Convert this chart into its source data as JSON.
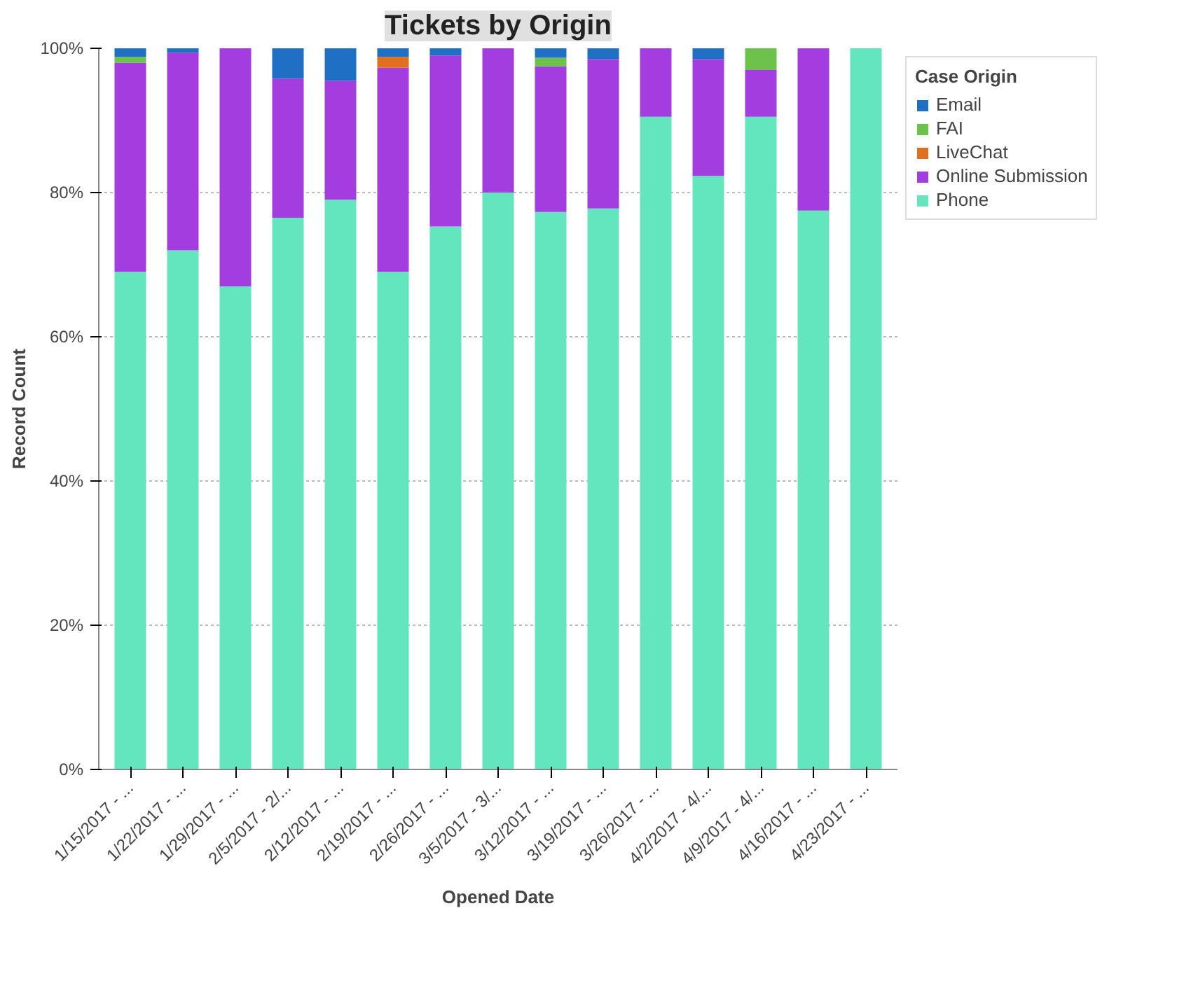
{
  "chart_data": {
    "type": "bar",
    "stacked": true,
    "title": "Tickets by Origin",
    "xlabel": "Opened Date",
    "ylabel": "Record Count",
    "legend_title": "Case Origin",
    "legend": "top right",
    "grid": "y",
    "categories": [
      "1/15/2017 - ...",
      "1/22/2017 - ...",
      "1/29/2017 - ...",
      "2/5/2017 - 2/...",
      "2/12/2017 - ...",
      "2/19/2017 - ...",
      "2/26/2017 - ...",
      "3/5/2017 - 3/...",
      "3/12/2017 - ...",
      "3/19/2017 - ...",
      "3/26/2017 - ...",
      "4/2/2017 - 4/...",
      "4/9/2017 - 4/...",
      "4/16/2017 - ...",
      "4/23/2017 - ..."
    ],
    "ylim": [
      0,
      100
    ],
    "yticks": [
      {
        "value": 0,
        "label": "0%"
      },
      {
        "value": 20,
        "label": "20%"
      },
      {
        "value": 40,
        "label": "40%"
      },
      {
        "value": 60,
        "label": "60%"
      },
      {
        "value": 80,
        "label": "80%"
      },
      {
        "value": 100,
        "label": "100%"
      }
    ],
    "series": [
      {
        "name": "Phone",
        "color": "#63e6be",
        "values": [
          69,
          72,
          67,
          76.5,
          79,
          69,
          75.3,
          80,
          77.3,
          77.8,
          90.5,
          82.3,
          90.5,
          77.5,
          100
        ]
      },
      {
        "name": "Online Submission",
        "color": "#a43de0",
        "values": [
          29,
          27.4,
          33,
          19.3,
          16.5,
          28.3,
          23.7,
          20,
          20.2,
          20.7,
          9.5,
          16.2,
          6.5,
          22.5,
          null
        ]
      },
      {
        "name": "LiveChat",
        "color": "#e07020",
        "values": [
          null,
          null,
          null,
          null,
          null,
          1.5,
          null,
          null,
          null,
          null,
          null,
          null,
          null,
          null,
          null
        ]
      },
      {
        "name": "FAI",
        "color": "#6cc24a",
        "values": [
          0.8,
          null,
          null,
          null,
          null,
          null,
          null,
          null,
          1.2,
          null,
          null,
          null,
          3,
          null,
          null
        ]
      },
      {
        "name": "Email",
        "color": "#1f6fc5",
        "values": [
          1.2,
          0.6,
          null,
          4.2,
          4.5,
          1.2,
          1,
          null,
          1.3,
          1.5,
          null,
          1.5,
          null,
          null,
          null
        ]
      }
    ]
  }
}
